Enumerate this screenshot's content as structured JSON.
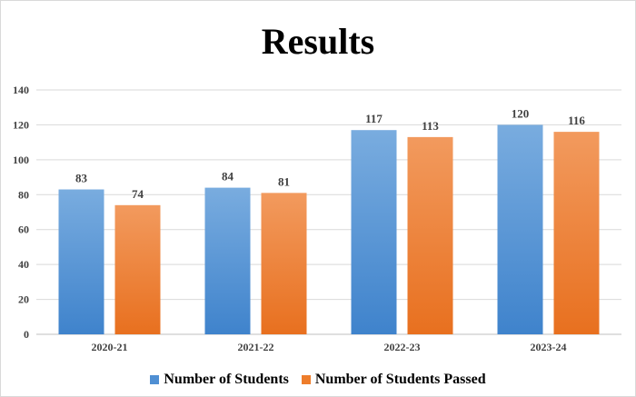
{
  "chart_data": {
    "type": "bar",
    "title": "Results",
    "categories": [
      "2020-21",
      "2021-22",
      "2022-23",
      "2023-24"
    ],
    "series": [
      {
        "name": "Number of Students",
        "values": [
          83,
          84,
          117,
          120
        ],
        "color": "#4f8fd3"
      },
      {
        "name": "Number of Students Passed",
        "values": [
          74,
          81,
          113,
          116
        ],
        "color": "#ee7d2b"
      }
    ],
    "ylim": [
      0,
      140
    ],
    "yticks": [
      0,
      20,
      40,
      60,
      80,
      100,
      120,
      140
    ],
    "grid": true,
    "legend_position": "bottom",
    "xlabel": "",
    "ylabel": ""
  }
}
